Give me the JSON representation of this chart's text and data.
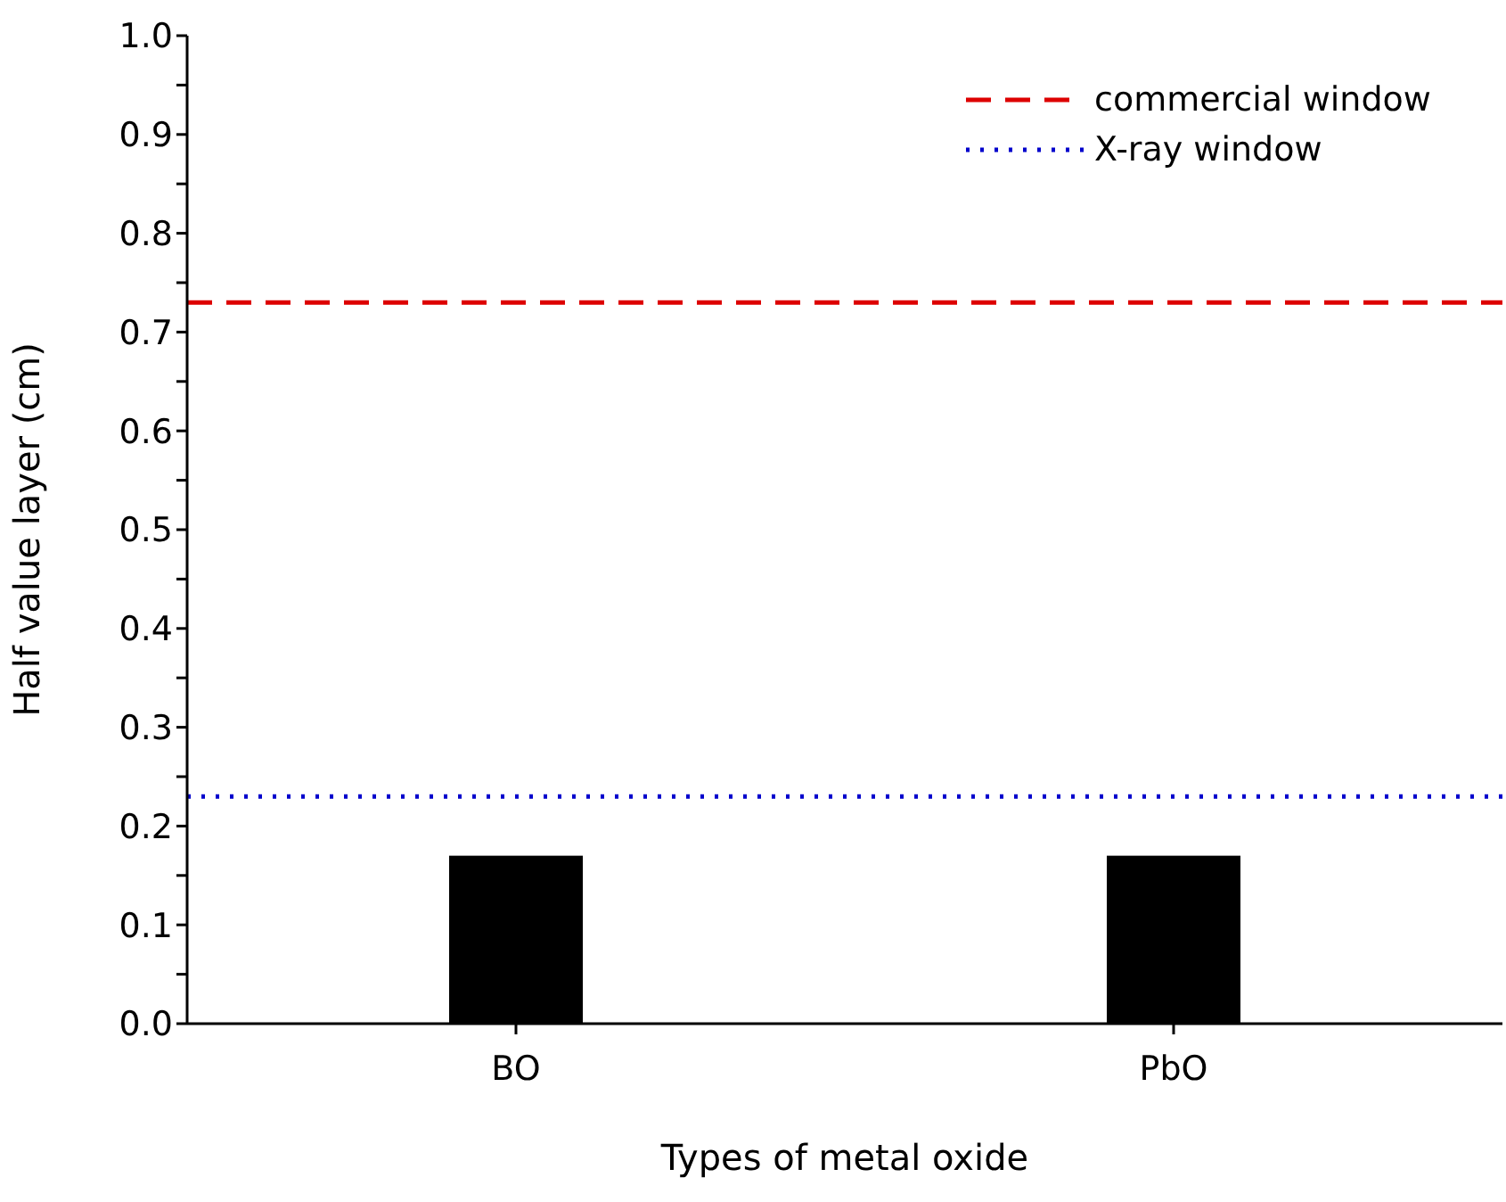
{
  "chart_data": {
    "type": "bar",
    "xlabel": "Types of metal oxide",
    "ylabel": "Half value layer (cm)",
    "categories": [
      "BO",
      "PbO"
    ],
    "values": [
      0.17,
      0.17
    ],
    "color": "#000000",
    "ylim": [
      0,
      1
    ],
    "yticks": [
      {
        "value": 0,
        "label": "0.0"
      },
      {
        "value": 0.05,
        "label": null
      },
      0.1,
      {
        "value": 0.15,
        "label": null
      },
      0.2,
      {
        "value": 0.25,
        "label": null
      },
      0.3,
      {
        "value": 0.35,
        "label": null
      },
      0.4,
      {
        "value": 0.45,
        "label": null
      },
      0.5,
      {
        "value": 0.55,
        "label": null
      },
      0.6,
      {
        "value": 0.65,
        "label": null
      },
      0.7,
      {
        "value": 0.75,
        "label": null
      },
      0.8,
      {
        "value": 0.85,
        "label": null
      },
      0.9,
      {
        "value": 0.95,
        "label": null
      },
      {
        "value": 1,
        "label": "1.0"
      }
    ],
    "ref_lines": [
      {
        "axis": "y",
        "value": 0.73,
        "label": "commercial window",
        "color": "#dd0000",
        "line_style": "dashed"
      },
      {
        "axis": "y",
        "value": 0.23,
        "label": "X-ray window",
        "color": "#0000cc",
        "line_style": "dotted"
      }
    ],
    "legend": "top right",
    "grid": false
  }
}
